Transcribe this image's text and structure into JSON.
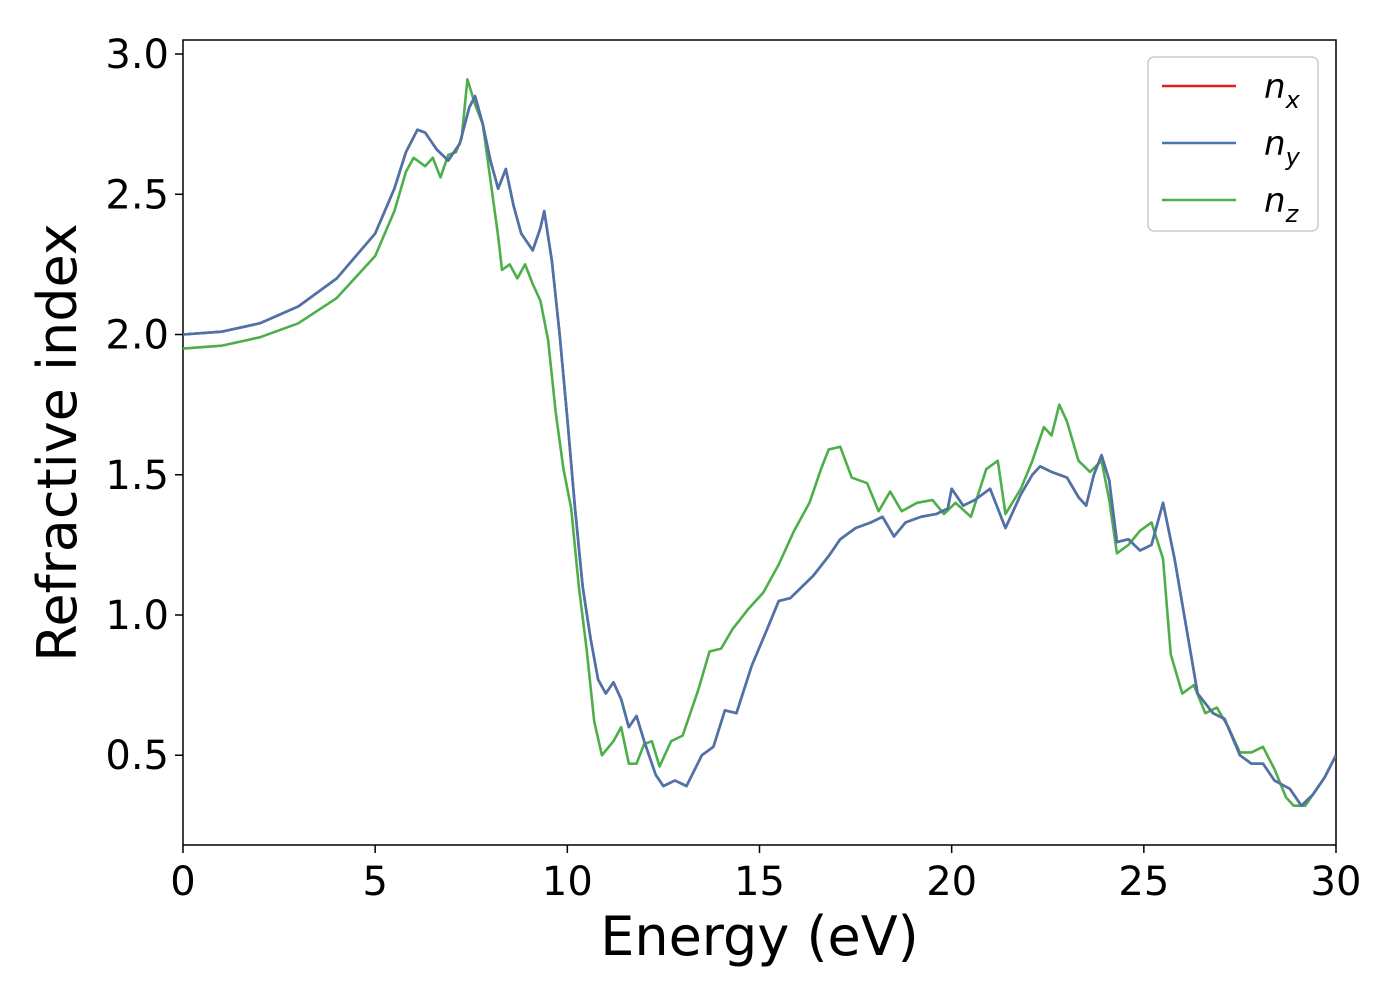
{
  "chart_data": {
    "type": "line",
    "title": "",
    "xlabel": "Energy (eV)",
    "ylabel": "Refractive index",
    "xlim": [
      0,
      30
    ],
    "ylim": [
      0.18,
      3.05
    ],
    "xticks": [
      0,
      5,
      10,
      15,
      20,
      25,
      30
    ],
    "xtick_labels": [
      "0",
      "5",
      "10",
      "15",
      "20",
      "25",
      "30"
    ],
    "yticks": [
      0.5,
      1.0,
      1.5,
      2.0,
      2.5,
      3.0
    ],
    "ytick_labels": [
      "0.5",
      "1.0",
      "1.5",
      "2.0",
      "2.5",
      "3.0"
    ],
    "grid": false,
    "legend_position": "top-right",
    "series": [
      {
        "name": "n",
        "subscript": "x",
        "color": "#e41a1c",
        "points": [
          [
            0,
            2.0
          ],
          [
            1,
            2.01
          ],
          [
            2,
            2.04
          ],
          [
            3,
            2.1
          ],
          [
            4,
            2.2
          ],
          [
            5,
            2.36
          ],
          [
            5.5,
            2.52
          ],
          [
            5.8,
            2.65
          ],
          [
            6.1,
            2.73
          ],
          [
            6.3,
            2.72
          ],
          [
            6.6,
            2.66
          ],
          [
            6.9,
            2.62
          ],
          [
            7.2,
            2.68
          ],
          [
            7.45,
            2.81
          ],
          [
            7.6,
            2.85
          ],
          [
            7.8,
            2.75
          ],
          [
            8.0,
            2.62
          ],
          [
            8.2,
            2.52
          ],
          [
            8.4,
            2.59
          ],
          [
            8.6,
            2.46
          ],
          [
            8.8,
            2.36
          ],
          [
            9.1,
            2.3
          ],
          [
            9.3,
            2.38
          ],
          [
            9.4,
            2.44
          ],
          [
            9.6,
            2.26
          ],
          [
            9.8,
            2.0
          ],
          [
            10.0,
            1.7
          ],
          [
            10.2,
            1.38
          ],
          [
            10.4,
            1.1
          ],
          [
            10.6,
            0.92
          ],
          [
            10.8,
            0.77
          ],
          [
            11.0,
            0.72
          ],
          [
            11.2,
            0.76
          ],
          [
            11.4,
            0.7
          ],
          [
            11.6,
            0.6
          ],
          [
            11.8,
            0.64
          ],
          [
            12.0,
            0.55
          ],
          [
            12.3,
            0.43
          ],
          [
            12.5,
            0.39
          ],
          [
            12.8,
            0.41
          ],
          [
            13.1,
            0.39
          ],
          [
            13.5,
            0.5
          ],
          [
            13.8,
            0.53
          ],
          [
            14.1,
            0.66
          ],
          [
            14.4,
            0.65
          ],
          [
            14.8,
            0.82
          ],
          [
            15.2,
            0.95
          ],
          [
            15.5,
            1.05
          ],
          [
            15.8,
            1.06
          ],
          [
            16.1,
            1.1
          ],
          [
            16.4,
            1.14
          ],
          [
            16.8,
            1.21
          ],
          [
            17.1,
            1.27
          ],
          [
            17.5,
            1.31
          ],
          [
            17.9,
            1.33
          ],
          [
            18.2,
            1.35
          ],
          [
            18.5,
            1.28
          ],
          [
            18.8,
            1.33
          ],
          [
            19.2,
            1.35
          ],
          [
            19.6,
            1.36
          ],
          [
            19.9,
            1.38
          ],
          [
            20.0,
            1.45
          ],
          [
            20.3,
            1.39
          ],
          [
            20.6,
            1.41
          ],
          [
            21.0,
            1.45
          ],
          [
            21.4,
            1.31
          ],
          [
            21.8,
            1.43
          ],
          [
            22.1,
            1.5
          ],
          [
            22.3,
            1.53
          ],
          [
            22.6,
            1.51
          ],
          [
            22.8,
            1.5
          ],
          [
            23.0,
            1.49
          ],
          [
            23.3,
            1.42
          ],
          [
            23.5,
            1.39
          ],
          [
            23.7,
            1.5
          ],
          [
            23.9,
            1.57
          ],
          [
            24.1,
            1.48
          ],
          [
            24.3,
            1.26
          ],
          [
            24.6,
            1.27
          ],
          [
            24.9,
            1.23
          ],
          [
            25.2,
            1.25
          ],
          [
            25.5,
            1.4
          ],
          [
            25.8,
            1.2
          ],
          [
            26.1,
            0.96
          ],
          [
            26.4,
            0.72
          ],
          [
            26.8,
            0.65
          ],
          [
            27.1,
            0.63
          ],
          [
            27.5,
            0.5
          ],
          [
            27.8,
            0.47
          ],
          [
            28.1,
            0.47
          ],
          [
            28.4,
            0.41
          ],
          [
            28.8,
            0.38
          ],
          [
            29.1,
            0.32
          ],
          [
            29.4,
            0.36
          ],
          [
            29.7,
            0.42
          ],
          [
            30,
            0.5
          ]
        ]
      },
      {
        "name": "n",
        "subscript": "y",
        "color": "#4a74ad",
        "points": [
          [
            0,
            2.0
          ],
          [
            1,
            2.01
          ],
          [
            2,
            2.04
          ],
          [
            3,
            2.1
          ],
          [
            4,
            2.2
          ],
          [
            5,
            2.36
          ],
          [
            5.5,
            2.52
          ],
          [
            5.8,
            2.65
          ],
          [
            6.1,
            2.73
          ],
          [
            6.3,
            2.72
          ],
          [
            6.6,
            2.66
          ],
          [
            6.9,
            2.62
          ],
          [
            7.2,
            2.68
          ],
          [
            7.45,
            2.81
          ],
          [
            7.6,
            2.85
          ],
          [
            7.8,
            2.75
          ],
          [
            8.0,
            2.62
          ],
          [
            8.2,
            2.52
          ],
          [
            8.4,
            2.59
          ],
          [
            8.6,
            2.46
          ],
          [
            8.8,
            2.36
          ],
          [
            9.1,
            2.3
          ],
          [
            9.3,
            2.38
          ],
          [
            9.4,
            2.44
          ],
          [
            9.6,
            2.26
          ],
          [
            9.8,
            2.0
          ],
          [
            10.0,
            1.7
          ],
          [
            10.2,
            1.38
          ],
          [
            10.4,
            1.1
          ],
          [
            10.6,
            0.92
          ],
          [
            10.8,
            0.77
          ],
          [
            11.0,
            0.72
          ],
          [
            11.2,
            0.76
          ],
          [
            11.4,
            0.7
          ],
          [
            11.6,
            0.6
          ],
          [
            11.8,
            0.64
          ],
          [
            12.0,
            0.55
          ],
          [
            12.3,
            0.43
          ],
          [
            12.5,
            0.39
          ],
          [
            12.8,
            0.41
          ],
          [
            13.1,
            0.39
          ],
          [
            13.5,
            0.5
          ],
          [
            13.8,
            0.53
          ],
          [
            14.1,
            0.66
          ],
          [
            14.4,
            0.65
          ],
          [
            14.8,
            0.82
          ],
          [
            15.2,
            0.95
          ],
          [
            15.5,
            1.05
          ],
          [
            15.8,
            1.06
          ],
          [
            16.1,
            1.1
          ],
          [
            16.4,
            1.14
          ],
          [
            16.8,
            1.21
          ],
          [
            17.1,
            1.27
          ],
          [
            17.5,
            1.31
          ],
          [
            17.9,
            1.33
          ],
          [
            18.2,
            1.35
          ],
          [
            18.5,
            1.28
          ],
          [
            18.8,
            1.33
          ],
          [
            19.2,
            1.35
          ],
          [
            19.6,
            1.36
          ],
          [
            19.9,
            1.38
          ],
          [
            20.0,
            1.45
          ],
          [
            20.3,
            1.39
          ],
          [
            20.6,
            1.41
          ],
          [
            21.0,
            1.45
          ],
          [
            21.4,
            1.31
          ],
          [
            21.8,
            1.43
          ],
          [
            22.1,
            1.5
          ],
          [
            22.3,
            1.53
          ],
          [
            22.6,
            1.51
          ],
          [
            22.8,
            1.5
          ],
          [
            23.0,
            1.49
          ],
          [
            23.3,
            1.42
          ],
          [
            23.5,
            1.39
          ],
          [
            23.7,
            1.5
          ],
          [
            23.9,
            1.57
          ],
          [
            24.1,
            1.48
          ],
          [
            24.3,
            1.26
          ],
          [
            24.6,
            1.27
          ],
          [
            24.9,
            1.23
          ],
          [
            25.2,
            1.25
          ],
          [
            25.5,
            1.4
          ],
          [
            25.8,
            1.2
          ],
          [
            26.1,
            0.96
          ],
          [
            26.4,
            0.72
          ],
          [
            26.8,
            0.65
          ],
          [
            27.1,
            0.63
          ],
          [
            27.5,
            0.5
          ],
          [
            27.8,
            0.47
          ],
          [
            28.1,
            0.47
          ],
          [
            28.4,
            0.41
          ],
          [
            28.8,
            0.38
          ],
          [
            29.1,
            0.32
          ],
          [
            29.4,
            0.36
          ],
          [
            29.7,
            0.42
          ],
          [
            30,
            0.5
          ]
        ]
      },
      {
        "name": "n",
        "subscript": "z",
        "color": "#4daf4a",
        "points": [
          [
            0,
            1.95
          ],
          [
            1,
            1.96
          ],
          [
            2,
            1.99
          ],
          [
            3,
            2.04
          ],
          [
            4,
            2.13
          ],
          [
            5,
            2.28
          ],
          [
            5.5,
            2.44
          ],
          [
            5.8,
            2.58
          ],
          [
            6.0,
            2.63
          ],
          [
            6.3,
            2.6
          ],
          [
            6.5,
            2.63
          ],
          [
            6.7,
            2.56
          ],
          [
            6.9,
            2.64
          ],
          [
            7.1,
            2.65
          ],
          [
            7.25,
            2.7
          ],
          [
            7.4,
            2.91
          ],
          [
            7.6,
            2.82
          ],
          [
            7.8,
            2.75
          ],
          [
            8.0,
            2.55
          ],
          [
            8.2,
            2.35
          ],
          [
            8.3,
            2.23
          ],
          [
            8.5,
            2.25
          ],
          [
            8.7,
            2.2
          ],
          [
            8.9,
            2.25
          ],
          [
            9.1,
            2.18
          ],
          [
            9.3,
            2.12
          ],
          [
            9.5,
            1.98
          ],
          [
            9.7,
            1.72
          ],
          [
            9.9,
            1.52
          ],
          [
            10.1,
            1.38
          ],
          [
            10.3,
            1.1
          ],
          [
            10.5,
            0.88
          ],
          [
            10.7,
            0.62
          ],
          [
            10.9,
            0.5
          ],
          [
            11.2,
            0.55
          ],
          [
            11.4,
            0.6
          ],
          [
            11.6,
            0.47
          ],
          [
            11.8,
            0.47
          ],
          [
            12.0,
            0.54
          ],
          [
            12.2,
            0.55
          ],
          [
            12.4,
            0.46
          ],
          [
            12.7,
            0.55
          ],
          [
            13.0,
            0.57
          ],
          [
            13.4,
            0.73
          ],
          [
            13.7,
            0.87
          ],
          [
            14.0,
            0.88
          ],
          [
            14.3,
            0.95
          ],
          [
            14.7,
            1.02
          ],
          [
            15.1,
            1.08
          ],
          [
            15.5,
            1.18
          ],
          [
            15.9,
            1.3
          ],
          [
            16.3,
            1.4
          ],
          [
            16.6,
            1.52
          ],
          [
            16.8,
            1.59
          ],
          [
            17.1,
            1.6
          ],
          [
            17.4,
            1.49
          ],
          [
            17.8,
            1.47
          ],
          [
            18.1,
            1.37
          ],
          [
            18.4,
            1.44
          ],
          [
            18.7,
            1.37
          ],
          [
            19.1,
            1.4
          ],
          [
            19.5,
            1.41
          ],
          [
            19.8,
            1.36
          ],
          [
            20.1,
            1.4
          ],
          [
            20.5,
            1.35
          ],
          [
            20.9,
            1.52
          ],
          [
            21.2,
            1.55
          ],
          [
            21.4,
            1.36
          ],
          [
            21.8,
            1.45
          ],
          [
            22.1,
            1.55
          ],
          [
            22.4,
            1.67
          ],
          [
            22.6,
            1.64
          ],
          [
            22.8,
            1.75
          ],
          [
            23.0,
            1.69
          ],
          [
            23.3,
            1.55
          ],
          [
            23.6,
            1.51
          ],
          [
            23.9,
            1.55
          ],
          [
            24.1,
            1.41
          ],
          [
            24.3,
            1.22
          ],
          [
            24.6,
            1.25
          ],
          [
            24.9,
            1.3
          ],
          [
            25.2,
            1.33
          ],
          [
            25.5,
            1.2
          ],
          [
            25.7,
            0.86
          ],
          [
            26.0,
            0.72
          ],
          [
            26.3,
            0.75
          ],
          [
            26.6,
            0.65
          ],
          [
            26.9,
            0.67
          ],
          [
            27.2,
            0.6
          ],
          [
            27.5,
            0.51
          ],
          [
            27.8,
            0.51
          ],
          [
            28.1,
            0.53
          ],
          [
            28.4,
            0.45
          ],
          [
            28.7,
            0.35
          ],
          [
            28.9,
            0.32
          ],
          [
            29.2,
            0.32
          ],
          [
            29.5,
            0.38
          ],
          [
            29.7,
            0.42
          ],
          [
            30,
            0.5
          ]
        ]
      }
    ]
  }
}
